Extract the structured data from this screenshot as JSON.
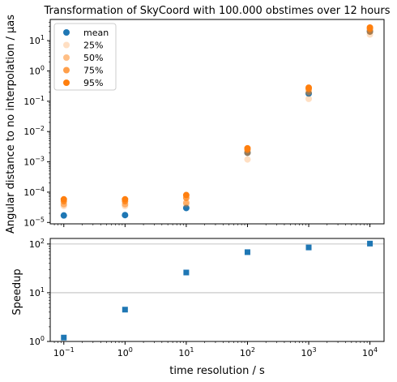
{
  "chart_data": [
    {
      "type": "scatter",
      "title": "Transformation of SkyCoord with 100.000 obstimes over 12 hours",
      "xlabel": "",
      "ylabel": "Angular distance to no interpolation / µas",
      "xscale": "log",
      "yscale": "log",
      "xlim": [
        0.06,
        17000
      ],
      "ylim": [
        9e-06,
        50
      ],
      "xticks": [
        0.1,
        1,
        10,
        100,
        1000,
        10000
      ],
      "xtick_labels_shown": false,
      "yticks": [
        1e-05,
        0.0001,
        0.001,
        0.01,
        0.1,
        1,
        10
      ],
      "ytick_labels": [
        {
          "base": "10",
          "exp": "−5"
        },
        {
          "base": "10",
          "exp": "−4"
        },
        {
          "base": "10",
          "exp": "−3"
        },
        {
          "base": "10",
          "exp": "−2"
        },
        {
          "base": "10",
          "exp": "−1"
        },
        {
          "base": "10",
          "exp": "0"
        },
        {
          "base": "10",
          "exp": "1"
        }
      ],
      "x": [
        0.1,
        1,
        10,
        100,
        1000,
        10000
      ],
      "legend_position": "top-left",
      "series": [
        {
          "name": "mean",
          "color": "#1f77b4",
          "opacity": 1.0,
          "values": [
            1.7e-05,
            1.75e-05,
            3e-05,
            0.002,
            0.18,
            20
          ]
        },
        {
          "name": "25%",
          "color": "#ff7f0e",
          "opacity": 0.25,
          "values": [
            3.5e-05,
            3.5e-05,
            4e-05,
            0.0012,
            0.12,
            16
          ]
        },
        {
          "name": "50%",
          "color": "#ff7f0e",
          "opacity": 0.5,
          "values": [
            4e-05,
            4e-05,
            4.5e-05,
            0.002,
            0.2,
            20
          ]
        },
        {
          "name": "75%",
          "color": "#ff7f0e",
          "opacity": 0.75,
          "values": [
            5e-05,
            5e-05,
            6.5e-05,
            0.0025,
            0.25,
            24
          ]
        },
        {
          "name": "95%",
          "color": "#ff7f0e",
          "opacity": 1.0,
          "values": [
            5.8e-05,
            5.8e-05,
            8e-05,
            0.0028,
            0.28,
            27
          ]
        }
      ]
    },
    {
      "type": "scatter",
      "title": "",
      "xlabel": "time resolution / s",
      "ylabel": "Speedup",
      "xscale": "log",
      "yscale": "log",
      "xlim": [
        0.06,
        17000
      ],
      "ylim": [
        1,
        130
      ],
      "xticks": [
        0.1,
        1,
        10,
        100,
        1000,
        10000
      ],
      "xtick_labels": [
        {
          "base": "10",
          "exp": "−1"
        },
        {
          "base": "10",
          "exp": "0"
        },
        {
          "base": "10",
          "exp": "1"
        },
        {
          "base": "10",
          "exp": "2"
        },
        {
          "base": "10",
          "exp": "3"
        },
        {
          "base": "10",
          "exp": "4"
        }
      ],
      "yticks": [
        1,
        10,
        100
      ],
      "ytick_labels": [
        {
          "base": "10",
          "exp": "0"
        },
        {
          "base": "10",
          "exp": "1"
        },
        {
          "base": "10",
          "exp": "2"
        }
      ],
      "grid": "horizontal major",
      "marker": "square",
      "color": "#1f77b4",
      "x": [
        0.1,
        1,
        10,
        100,
        1000,
        10000
      ],
      "values": [
        1.2,
        4.5,
        26,
        68,
        85,
        102
      ]
    }
  ]
}
